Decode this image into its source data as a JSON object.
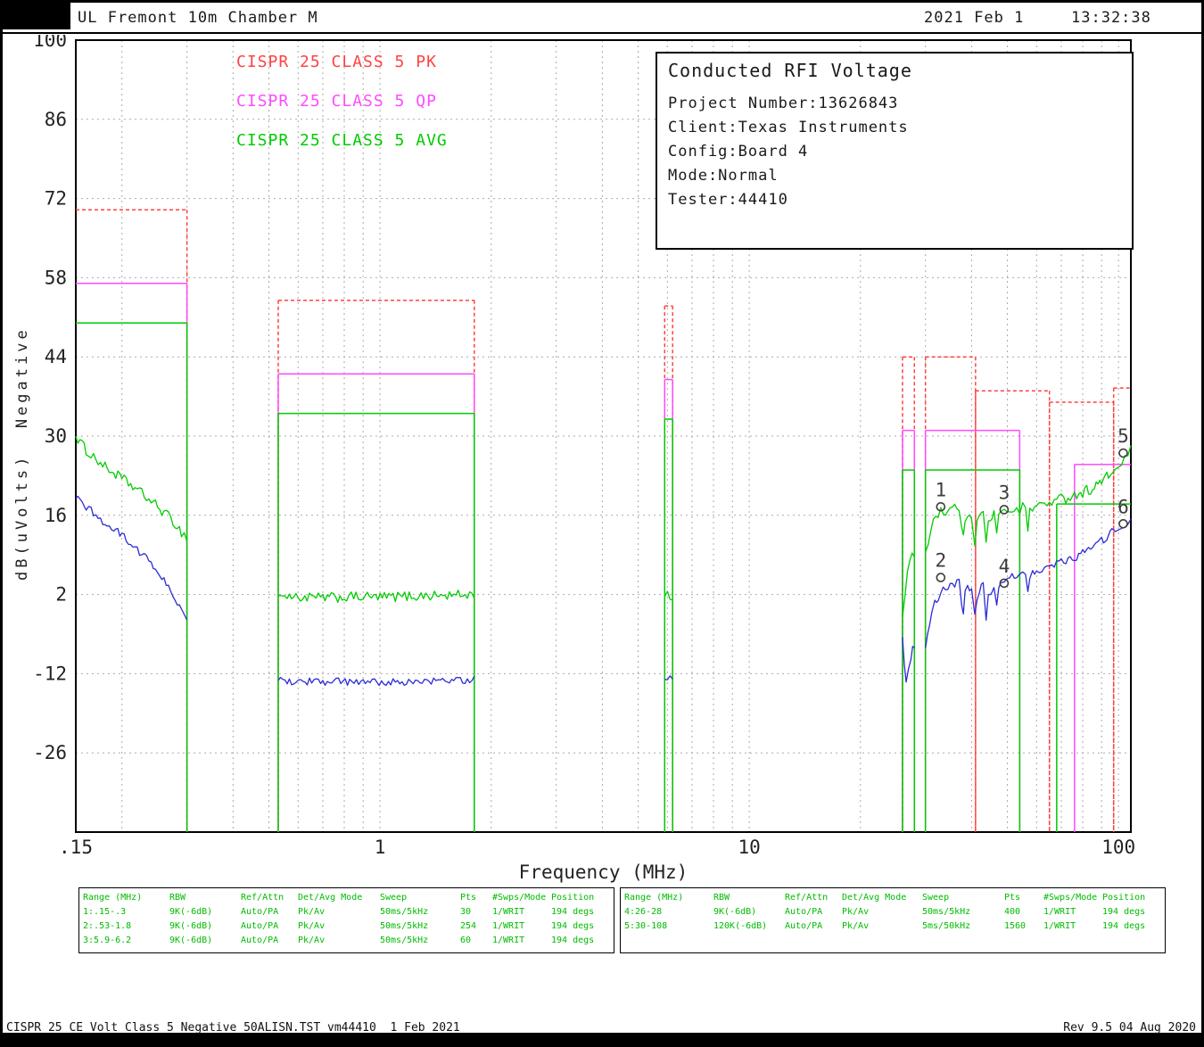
{
  "header": {
    "title": "UL Fremont 10m Chamber M",
    "date": "2021 Feb 1",
    "time": "13:32:38"
  },
  "info_box": {
    "title": "Conducted RFI Voltage",
    "lines": [
      "Project Number:13626843",
      "Client:Texas Instruments",
      "Config:Board 4",
      "Mode:Normal",
      "Tester:44410"
    ]
  },
  "legend": {
    "items": [
      {
        "label": "CISPR 25 CLASS 5 PK",
        "color": "#ff4242"
      },
      {
        "label": "CISPR 25 CLASS 5 QP",
        "color": "#ff4bff"
      },
      {
        "label": "CISPR 25 CLASS 5 AVG",
        "color": "#00cc00"
      }
    ]
  },
  "chart_data": {
    "type": "line",
    "title": "Conducted RFI Voltage",
    "x_axis": {
      "label": "Frequency (MHz)",
      "scale": "log",
      "min": 0.15,
      "max": 108,
      "ticks": [
        {
          "f": 0.15,
          "label": ".15"
        },
        {
          "f": 1,
          "label": "1"
        },
        {
          "f": 10,
          "label": "10"
        },
        {
          "f": 100,
          "label": "100"
        }
      ]
    },
    "y_axis": {
      "label": "dB(uVolts)  Negative",
      "min": -40,
      "max": 100,
      "ticks": [
        100,
        86,
        72,
        58,
        44,
        30,
        16,
        2,
        -12,
        -26
      ]
    },
    "grid": true,
    "marker_color": "#3c3c3c",
    "limit_lines": [
      {
        "name": "CISPR 25 CLASS 5 PK",
        "color": "#ff4242",
        "style": "dashed",
        "bands": [
          [
            0.15,
            0.3,
            70
          ],
          [
            0.53,
            1.8,
            54
          ],
          [
            5.9,
            6.2,
            53
          ],
          [
            26,
            28,
            44
          ],
          [
            30,
            41,
            44
          ],
          [
            41,
            65,
            38
          ],
          [
            65,
            97,
            36
          ],
          [
            97,
            108,
            38.5
          ]
        ]
      },
      {
        "name": "CISPR 25 CLASS 5 QP",
        "color": "#ff4bff",
        "style": "solid",
        "bands": [
          [
            0.15,
            0.3,
            57
          ],
          [
            0.53,
            1.8,
            41
          ],
          [
            5.9,
            6.2,
            40
          ],
          [
            26,
            28,
            31
          ],
          [
            30,
            54,
            31
          ],
          [
            76,
            108,
            25
          ]
        ]
      },
      {
        "name": "CISPR 25 CLASS 5 AVG",
        "color": "#00cc00",
        "style": "solid",
        "bands": [
          [
            0.15,
            0.3,
            50
          ],
          [
            0.53,
            1.8,
            34
          ],
          [
            5.9,
            6.2,
            33
          ],
          [
            26,
            28,
            24
          ],
          [
            30,
            54,
            24
          ],
          [
            68,
            108,
            18
          ]
        ]
      }
    ],
    "traces": [
      {
        "name": "Peak measurement",
        "color": "#00cc00",
        "noise": 0.9,
        "segments": [
          [
            [
              0.15,
              30
            ],
            [
              0.16,
              27.5
            ],
            [
              0.17,
              26
            ],
            [
              0.18,
              24.5
            ],
            [
              0.19,
              23.5
            ],
            [
              0.2,
              22.5
            ],
            [
              0.22,
              20.5
            ],
            [
              0.24,
              18.5
            ],
            [
              0.26,
              16.5
            ],
            [
              0.275,
              15
            ],
            [
              0.29,
              13
            ],
            [
              0.3,
              12
            ]
          ],
          [
            [
              0.53,
              1.8
            ],
            [
              0.6,
              1.5
            ],
            [
              0.7,
              1.4
            ],
            [
              0.8,
              1.5
            ],
            [
              0.9,
              1.6
            ],
            [
              1.0,
              1.5
            ],
            [
              1.1,
              1.6
            ],
            [
              1.2,
              1.7
            ],
            [
              1.35,
              1.8
            ],
            [
              1.5,
              1.8
            ],
            [
              1.65,
              1.9
            ],
            [
              1.8,
              2.1
            ]
          ],
          [
            [
              5.9,
              1.6
            ],
            [
              6.0,
              1.9
            ],
            [
              6.1,
              1.7
            ],
            [
              6.2,
              1.5
            ]
          ],
          [
            [
              26,
              -2
            ],
            [
              26.4,
              2
            ],
            [
              26.8,
              5.5
            ],
            [
              27.2,
              7.5
            ],
            [
              27.6,
              8.5
            ],
            [
              28,
              9
            ]
          ],
          [
            [
              30,
              9.5
            ],
            [
              30.5,
              11.5
            ],
            [
              31,
              13.5
            ],
            [
              31.5,
              15
            ],
            [
              32,
              16
            ],
            [
              33,
              17
            ],
            [
              34,
              16.5
            ],
            [
              35,
              17
            ],
            [
              36,
              17.5
            ],
            [
              37,
              17.5
            ],
            [
              37.6,
              13
            ],
            [
              38,
              12
            ],
            [
              38.4,
              15.5
            ],
            [
              39,
              16.5
            ],
            [
              40,
              16
            ],
            [
              40.8,
              11.5
            ],
            [
              41.4,
              14.5
            ],
            [
              42,
              16
            ],
            [
              43,
              16.5
            ],
            [
              43.8,
              11
            ],
            [
              44.4,
              14.5
            ],
            [
              45,
              15.5
            ],
            [
              46,
              16.5
            ],
            [
              46.8,
              12.5
            ],
            [
              47.4,
              15.5
            ],
            [
              48,
              16.5
            ],
            [
              49,
              16.5
            ],
            [
              50,
              17
            ],
            [
              51.5,
              17
            ],
            [
              53,
              17.5
            ],
            [
              54,
              17
            ],
            [
              55,
              17.5
            ],
            [
              56,
              17.5
            ],
            [
              56.8,
              13.5
            ],
            [
              57.5,
              16.5
            ],
            [
              58.5,
              17.5
            ],
            [
              60,
              17.5
            ],
            [
              62,
              18
            ],
            [
              64,
              18
            ],
            [
              66,
              18.5
            ],
            [
              68,
              18.5
            ],
            [
              70,
              19
            ],
            [
              72,
              19
            ],
            [
              74,
              19.5
            ],
            [
              76,
              19.5
            ],
            [
              78,
              20
            ],
            [
              80,
              20
            ],
            [
              82,
              20.5
            ],
            [
              84,
              20.5
            ],
            [
              86,
              21
            ],
            [
              88,
              21.5
            ],
            [
              90,
              22
            ],
            [
              92,
              22.5
            ],
            [
              94,
              23
            ],
            [
              96,
              23.5
            ],
            [
              98,
              24
            ],
            [
              100,
              24.5
            ],
            [
              102,
              25.5
            ],
            [
              104,
              26
            ],
            [
              106,
              26.5
            ],
            [
              108,
              27.5
            ]
          ]
        ]
      },
      {
        "name": "Average measurement",
        "color": "#2b2bd6",
        "noise": 0.7,
        "segments": [
          [
            [
              0.15,
              19
            ],
            [
              0.16,
              17.5
            ],
            [
              0.17,
              16
            ],
            [
              0.18,
              14.5
            ],
            [
              0.19,
              13.5
            ],
            [
              0.2,
              12.5
            ],
            [
              0.22,
              10
            ],
            [
              0.24,
              7.5
            ],
            [
              0.26,
              4.5
            ],
            [
              0.275,
              2
            ],
            [
              0.29,
              -1
            ],
            [
              0.3,
              -3
            ]
          ],
          [
            [
              0.53,
              -13.2
            ],
            [
              0.7,
              -13.4
            ],
            [
              0.9,
              -13.5
            ],
            [
              1.1,
              -13.5
            ],
            [
              1.3,
              -13.4
            ],
            [
              1.5,
              -13.3
            ],
            [
              1.65,
              -13.2
            ],
            [
              1.8,
              -13
            ]
          ],
          [
            [
              5.9,
              -13
            ],
            [
              6.0,
              -12.6
            ],
            [
              6.1,
              -12.8
            ],
            [
              6.2,
              -13
            ]
          ],
          [
            [
              26,
              -5.5
            ],
            [
              26.3,
              -10.5
            ],
            [
              26.6,
              -13
            ],
            [
              27,
              -11.5
            ],
            [
              27.4,
              -9
            ],
            [
              27.7,
              -7.5
            ],
            [
              28,
              -7
            ]
          ],
          [
            [
              30,
              -7.5
            ],
            [
              30.4,
              -5
            ],
            [
              30.8,
              -3
            ],
            [
              31.2,
              -1.5
            ],
            [
              31.8,
              0.5
            ],
            [
              32.5,
              1.5
            ],
            [
              33,
              2.5
            ],
            [
              34,
              3
            ],
            [
              35,
              3.5
            ],
            [
              36,
              4
            ],
            [
              37,
              4.5
            ],
            [
              37.6,
              0
            ],
            [
              38,
              -1
            ],
            [
              38.4,
              2.5
            ],
            [
              39,
              3.5
            ],
            [
              40,
              3
            ],
            [
              40.8,
              -1.5
            ],
            [
              41.4,
              1.5
            ],
            [
              42,
              3
            ],
            [
              43,
              3.5
            ],
            [
              43.8,
              -2
            ],
            [
              44.4,
              1.5
            ],
            [
              45,
              2.5
            ],
            [
              46,
              3.5
            ],
            [
              46.8,
              -0.5
            ],
            [
              47.4,
              2.5
            ],
            [
              48,
              4
            ],
            [
              49,
              4
            ],
            [
              50,
              4.5
            ],
            [
              51.5,
              5
            ],
            [
              53,
              5
            ],
            [
              54,
              5.5
            ],
            [
              55,
              5.5
            ],
            [
              56,
              6
            ],
            [
              56.8,
              2.5
            ],
            [
              57.5,
              5
            ],
            [
              58.5,
              6
            ],
            [
              60,
              6.5
            ],
            [
              62,
              6.5
            ],
            [
              64,
              7
            ],
            [
              66,
              7
            ],
            [
              68,
              7.5
            ],
            [
              70,
              8
            ],
            [
              72,
              8
            ],
            [
              74,
              8.5
            ],
            [
              76,
              8.5
            ],
            [
              78,
              9
            ],
            [
              80,
              9.5
            ],
            [
              82,
              10
            ],
            [
              84,
              10
            ],
            [
              86,
              10.5
            ],
            [
              88,
              11
            ],
            [
              90,
              11.5
            ],
            [
              92,
              12
            ],
            [
              94,
              12.5
            ],
            [
              96,
              13
            ],
            [
              98,
              13
            ],
            [
              100,
              13.5
            ],
            [
              102,
              14
            ],
            [
              104,
              14.5
            ],
            [
              106,
              15
            ],
            [
              108,
              15.5
            ]
          ]
        ]
      }
    ],
    "markers": [
      {
        "label": "1",
        "f": 33,
        "v": 17.5
      },
      {
        "label": "2",
        "f": 33,
        "v": 5
      },
      {
        "label": "3",
        "f": 49,
        "v": 17
      },
      {
        "label": "4",
        "f": 49,
        "v": 4
      },
      {
        "label": "5",
        "f": 103,
        "v": 27
      },
      {
        "label": "6",
        "f": 103,
        "v": 14.5
      }
    ]
  },
  "sweep_table": {
    "text_color": "#00bb00",
    "headers": [
      "Range (MHz)",
      "RBW",
      "Ref/Attn",
      "Det/Avg Mode",
      "Sweep",
      "Pts",
      "#Swps/Mode",
      "Position"
    ],
    "left_rows": [
      [
        "1:.15-.3",
        "9K(-6dB)",
        "Auto/PA",
        "Pk/Av",
        "50ms/5kHz",
        "30",
        "1/WRIT",
        "194 degs"
      ],
      [
        "2:.53-1.8",
        "9K(-6dB)",
        "Auto/PA",
        "Pk/Av",
        "50ms/5kHz",
        "254",
        "1/WRIT",
        "194 degs"
      ],
      [
        "3:5.9-6.2",
        "9K(-6dB)",
        "Auto/PA",
        "Pk/Av",
        "50ms/5kHz",
        "60",
        "1/WRIT",
        "194 degs"
      ]
    ],
    "right_rows": [
      [
        "4:26-28",
        "9K(-6dB)",
        "Auto/PA",
        "Pk/Av",
        "50ms/5kHz",
        "400",
        "1/WRIT",
        "194 degs"
      ],
      [
        "5:30-108",
        "120K(-6dB)",
        "Auto/PA",
        "Pk/Av",
        "5ms/50kHz",
        "1560",
        "1/WRIT",
        "194 degs"
      ]
    ]
  },
  "footer": {
    "left": "CISPR 25 CE Volt Class 5_Negative 50ALISN.TST vm44410  1 Feb 2021",
    "right": "Rev 9.5 04 Aug 2020"
  }
}
